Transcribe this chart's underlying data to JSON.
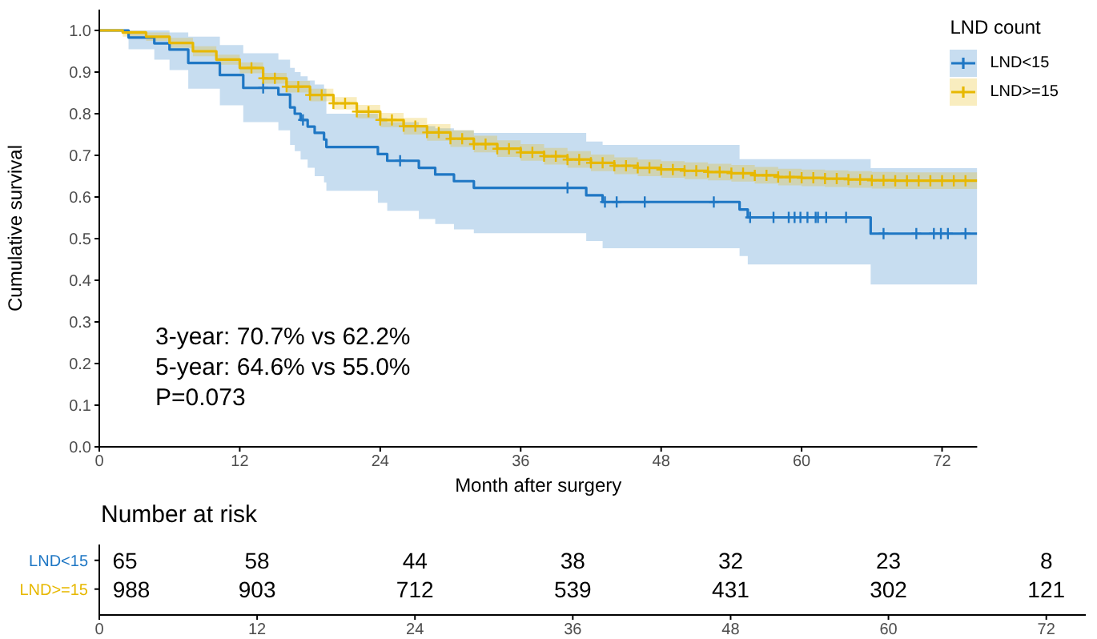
{
  "chart_data": [
    {
      "type": "step",
      "xlabel": "Month after surgery",
      "ylabel": "Cumulative survival",
      "legend_title": "LND count",
      "legend": "top right",
      "xlim": [
        0,
        75
      ],
      "xticks": [
        0,
        12,
        24,
        36,
        48,
        60,
        72
      ],
      "ylim": [
        0,
        1.05
      ],
      "yticks": [
        {
          "value": 0,
          "label": "0.0"
        },
        {
          "value": 0.1,
          "label": "0.1"
        },
        {
          "value": 0.2,
          "label": "0.2"
        },
        {
          "value": 0.3,
          "label": "0.3"
        },
        {
          "value": 0.4,
          "label": "0.4"
        },
        {
          "value": 0.5,
          "label": "0.5"
        },
        {
          "value": 0.6,
          "label": "0.6"
        },
        {
          "value": 0.7,
          "label": "0.7"
        },
        {
          "value": 0.8,
          "label": "0.8"
        },
        {
          "value": 0.9,
          "label": "0.9"
        },
        {
          "value": 1,
          "label": "1.0"
        }
      ],
      "annotations": [
        "3-year: 70.7% vs 62.2%",
        "5-year: 64.6% vs 55.0%",
        "P=0.073"
      ],
      "series": [
        {
          "name": "LND<15",
          "color": "#1f77c4",
          "x": [
            0,
            2.5,
            4.7,
            6.0,
            7.6,
            10.3,
            12.3,
            15.3,
            16.3,
            16.7,
            17.2,
            17.8,
            18.4,
            19.2,
            19.4,
            23.8,
            24.6,
            27.3,
            28.7,
            30.3,
            32.0,
            41.6,
            43.0,
            54.7,
            55.4,
            65.9,
            75
          ],
          "values": [
            1,
            0.983,
            0.969,
            0.954,
            0.922,
            0.893,
            0.862,
            0.846,
            0.815,
            0.8,
            0.785,
            0.769,
            0.754,
            0.738,
            0.72,
            0.703,
            0.687,
            0.67,
            0.654,
            0.638,
            0.622,
            0.604,
            0.588,
            0.57,
            0.551,
            0.512,
            0.512
          ],
          "lower": [
            1,
            0.955,
            0.93,
            0.905,
            0.86,
            0.82,
            0.78,
            0.76,
            0.725,
            0.71,
            0.69,
            0.67,
            0.65,
            0.635,
            0.615,
            0.586,
            0.567,
            0.547,
            0.535,
            0.522,
            0.513,
            0.494,
            0.477,
            0.458,
            0.438,
            0.39,
            0.39
          ],
          "upper": [
            1,
            1,
            1,
            0.995,
            0.985,
            0.965,
            0.945,
            0.93,
            0.91,
            0.9,
            0.89,
            0.88,
            0.87,
            0.86,
            0.8,
            0.79,
            0.78,
            0.77,
            0.765,
            0.76,
            0.754,
            0.733,
            0.725,
            0.691,
            0.691,
            0.669,
            0.669
          ]
        },
        {
          "name": "LND>=15",
          "color": "#e7b800",
          "x": [
            0,
            2,
            4,
            6,
            8,
            10,
            12,
            14,
            16,
            18,
            20,
            22,
            24,
            26,
            28,
            30,
            32,
            34,
            36,
            38,
            40,
            42,
            44,
            46,
            48,
            50,
            52,
            54,
            56,
            58,
            60,
            62,
            64,
            66,
            68,
            70,
            72,
            74,
            75
          ],
          "values": [
            1,
            0.995,
            0.985,
            0.97,
            0.95,
            0.93,
            0.91,
            0.885,
            0.865,
            0.845,
            0.825,
            0.805,
            0.785,
            0.77,
            0.755,
            0.74,
            0.727,
            0.716,
            0.707,
            0.698,
            0.69,
            0.682,
            0.675,
            0.67,
            0.666,
            0.663,
            0.66,
            0.657,
            0.652,
            0.648,
            0.646,
            0.644,
            0.642,
            0.64,
            0.639,
            0.639,
            0.639,
            0.639,
            0.639
          ],
          "lower": [
            1,
            0.985,
            0.975,
            0.958,
            0.938,
            0.918,
            0.897,
            0.872,
            0.851,
            0.83,
            0.81,
            0.789,
            0.768,
            0.75,
            0.735,
            0.72,
            0.707,
            0.696,
            0.687,
            0.678,
            0.67,
            0.662,
            0.655,
            0.65,
            0.646,
            0.643,
            0.64,
            0.637,
            0.632,
            0.628,
            0.626,
            0.624,
            0.622,
            0.62,
            0.619,
            0.619,
            0.619,
            0.619,
            0.619
          ],
          "upper": [
            1,
            1,
            0.995,
            0.982,
            0.962,
            0.942,
            0.923,
            0.898,
            0.879,
            0.86,
            0.84,
            0.821,
            0.802,
            0.79,
            0.775,
            0.76,
            0.747,
            0.736,
            0.727,
            0.718,
            0.71,
            0.702,
            0.695,
            0.69,
            0.686,
            0.683,
            0.68,
            0.677,
            0.672,
            0.668,
            0.666,
            0.664,
            0.662,
            0.66,
            0.659,
            0.659,
            0.659,
            0.659,
            0.659
          ]
        },
        {
          "type": "scatter",
          "marker": "cross",
          "color": "#1f77c4",
          "x": [
            14.0,
            17.4,
            25.7,
            40.0,
            43.2,
            44.2,
            46.6,
            52.5,
            55.6,
            57.6,
            58.9,
            59.4,
            59.9,
            60.5,
            61.2,
            61.4,
            62.1,
            63.8,
            67.0,
            69.8,
            71.3,
            71.9,
            72.5,
            74.0
          ],
          "values": [
            0.862,
            0.785,
            0.687,
            0.622,
            0.588,
            0.588,
            0.588,
            0.588,
            0.551,
            0.551,
            0.551,
            0.551,
            0.551,
            0.551,
            0.551,
            0.551,
            0.551,
            0.551,
            0.512,
            0.512,
            0.512,
            0.512,
            0.512,
            0.512
          ]
        },
        {
          "type": "scatter",
          "marker": "cross",
          "color": "#e7b800",
          "x": [
            13,
            14,
            15,
            16,
            17,
            18,
            19,
            20,
            21,
            22,
            23,
            24,
            25,
            26,
            27,
            28,
            29,
            30,
            31,
            32,
            33,
            34,
            35,
            36,
            37,
            38,
            39,
            40,
            41,
            42,
            43,
            44,
            45,
            46,
            47,
            48,
            49,
            50,
            51,
            52,
            53,
            54,
            55,
            56,
            57,
            58,
            59,
            60,
            61,
            62,
            63,
            64,
            65,
            66,
            67,
            68,
            69,
            70,
            71,
            72,
            73,
            74
          ],
          "values": [
            0.91,
            0.885,
            0.885,
            0.865,
            0.865,
            0.845,
            0.845,
            0.825,
            0.825,
            0.805,
            0.805,
            0.785,
            0.785,
            0.77,
            0.77,
            0.755,
            0.755,
            0.74,
            0.74,
            0.727,
            0.727,
            0.716,
            0.716,
            0.707,
            0.707,
            0.698,
            0.698,
            0.69,
            0.69,
            0.682,
            0.682,
            0.675,
            0.675,
            0.67,
            0.67,
            0.666,
            0.666,
            0.663,
            0.663,
            0.66,
            0.66,
            0.657,
            0.657,
            0.652,
            0.652,
            0.648,
            0.648,
            0.646,
            0.646,
            0.644,
            0.644,
            0.642,
            0.642,
            0.64,
            0.64,
            0.639,
            0.639,
            0.639,
            0.639,
            0.639,
            0.639,
            0.639
          ]
        }
      ]
    },
    {
      "type": "heatmap",
      "title": "Number at risk",
      "categories": [
        "0",
        "12",
        "24",
        "36",
        "48",
        "60",
        "72"
      ],
      "y_categories": [
        "LND<15",
        "LND>=15"
      ],
      "data_labels": true,
      "cells": [
        [
          65,
          58,
          44,
          38,
          32,
          23,
          8
        ],
        [
          988,
          903,
          712,
          539,
          431,
          302,
          121
        ]
      ]
    }
  ]
}
